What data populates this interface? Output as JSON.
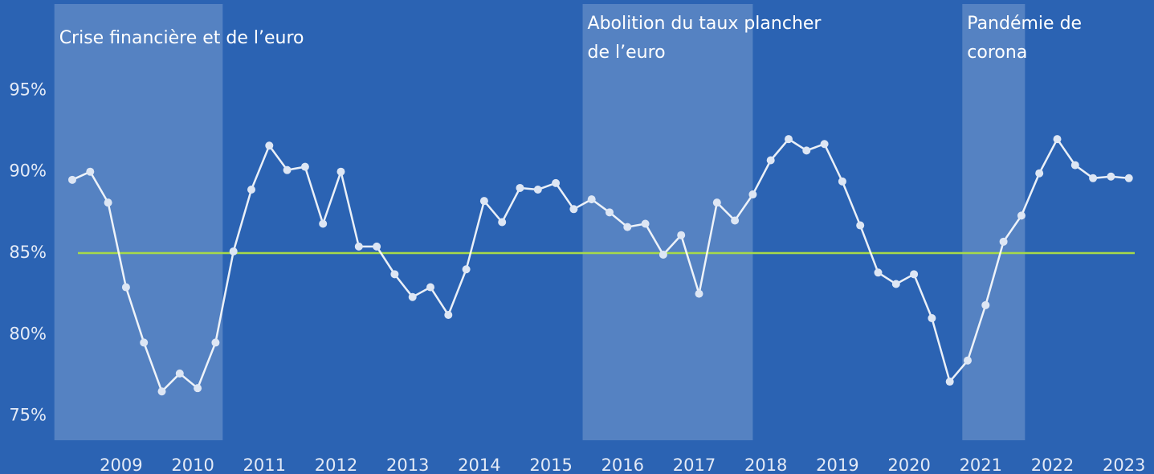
{
  "chart_data": {
    "type": "line",
    "categories": [
      null,
      null,
      null,
      "2009",
      null,
      null,
      null,
      "2010",
      null,
      null,
      null,
      "2011",
      null,
      null,
      null,
      "2012",
      null,
      null,
      null,
      "2013",
      null,
      null,
      null,
      "2014",
      null,
      null,
      null,
      "2015",
      null,
      null,
      null,
      "2016",
      null,
      null,
      null,
      "2017",
      null,
      null,
      null,
      "2018",
      null,
      null,
      null,
      "2019",
      null,
      null,
      null,
      "2020",
      null,
      null,
      null,
      "2021",
      null,
      null,
      null,
      "2022",
      null,
      null,
      null,
      "2023"
    ],
    "series": [
      {
        "color": "#ffffff",
        "values": [
          89.5,
          90.0,
          88.1,
          82.9,
          79.5,
          76.5,
          77.6,
          76.7,
          79.5,
          85.1,
          88.9,
          91.6,
          90.1,
          90.3,
          86.8,
          90.0,
          85.4,
          85.4,
          83.7,
          82.3,
          82.9,
          81.2,
          84.0,
          88.2,
          86.9,
          89.0,
          88.9,
          89.3,
          87.7,
          88.3,
          87.5,
          86.6,
          86.8,
          84.9,
          86.1,
          82.5,
          88.1,
          87.0,
          88.6,
          90.7,
          92.0,
          91.3,
          91.7,
          89.4,
          86.7,
          83.8,
          83.1,
          83.7,
          81.0,
          77.1,
          78.4,
          81.8,
          85.7,
          87.3,
          89.9,
          92.0,
          90.4,
          89.6,
          89.7,
          89.6
        ]
      }
    ],
    "reference_line": {
      "value": 85,
      "color": "#a6d94a"
    },
    "ylim": [
      73.5,
      100.3
    ],
    "yticks": [
      {
        "value": 75,
        "label": "75%"
      },
      {
        "value": 80,
        "label": "80%"
      },
      {
        "value": 85,
        "label": "85%"
      },
      {
        "value": 90,
        "label": "90%"
      },
      {
        "value": 95,
        "label": "95%"
      }
    ],
    "grid": false,
    "annotations": [
      {
        "text": [
          "Crise financière et de l’euro"
        ],
        "start": -1,
        "end": 8.4
      },
      {
        "text": [
          "Abolition du taux plancher",
          "de l’euro"
        ],
        "start": 28.5,
        "end": 38
      },
      {
        "text": [
          "Pandémie de",
          "corona"
        ],
        "start": 49.7,
        "end": 53.2
      }
    ]
  }
}
